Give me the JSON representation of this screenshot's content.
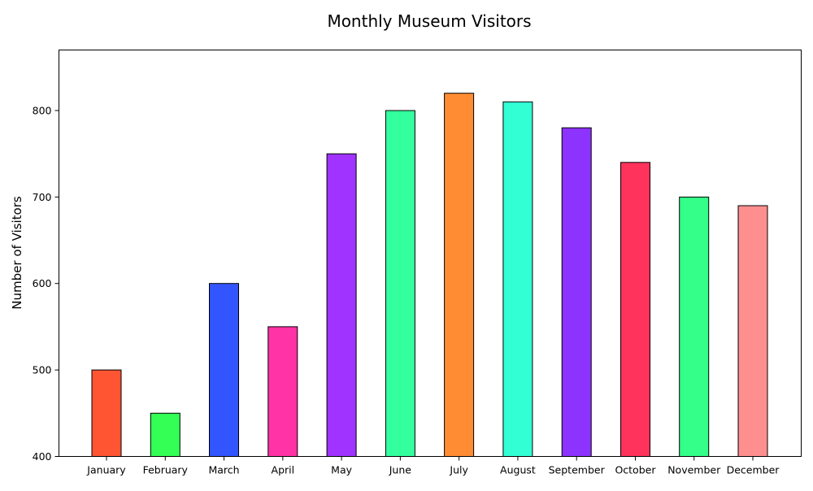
{
  "chart_data": {
    "type": "bar",
    "title": "Monthly Museum Visitors",
    "xlabel": "",
    "ylabel": "Number of Visitors",
    "categories": [
      "January",
      "February",
      "March",
      "April",
      "May",
      "June",
      "July",
      "August",
      "September",
      "October",
      "November",
      "December"
    ],
    "values": [
      500,
      450,
      600,
      550,
      750,
      800,
      820,
      810,
      780,
      740,
      700,
      690
    ],
    "colors": [
      "#ff5533",
      "#33ff55",
      "#3355ff",
      "#ff33a5",
      "#a033ff",
      "#33ff9f",
      "#ff8c33",
      "#33ffd5",
      "#8c33ff",
      "#ff335c",
      "#33ff89",
      "#ff8f8f"
    ],
    "edge_color": "#000000",
    "ylim": [
      400,
      870
    ],
    "yticks": [
      400,
      500,
      600,
      700,
      800
    ],
    "grid": false,
    "legend": "none"
  }
}
